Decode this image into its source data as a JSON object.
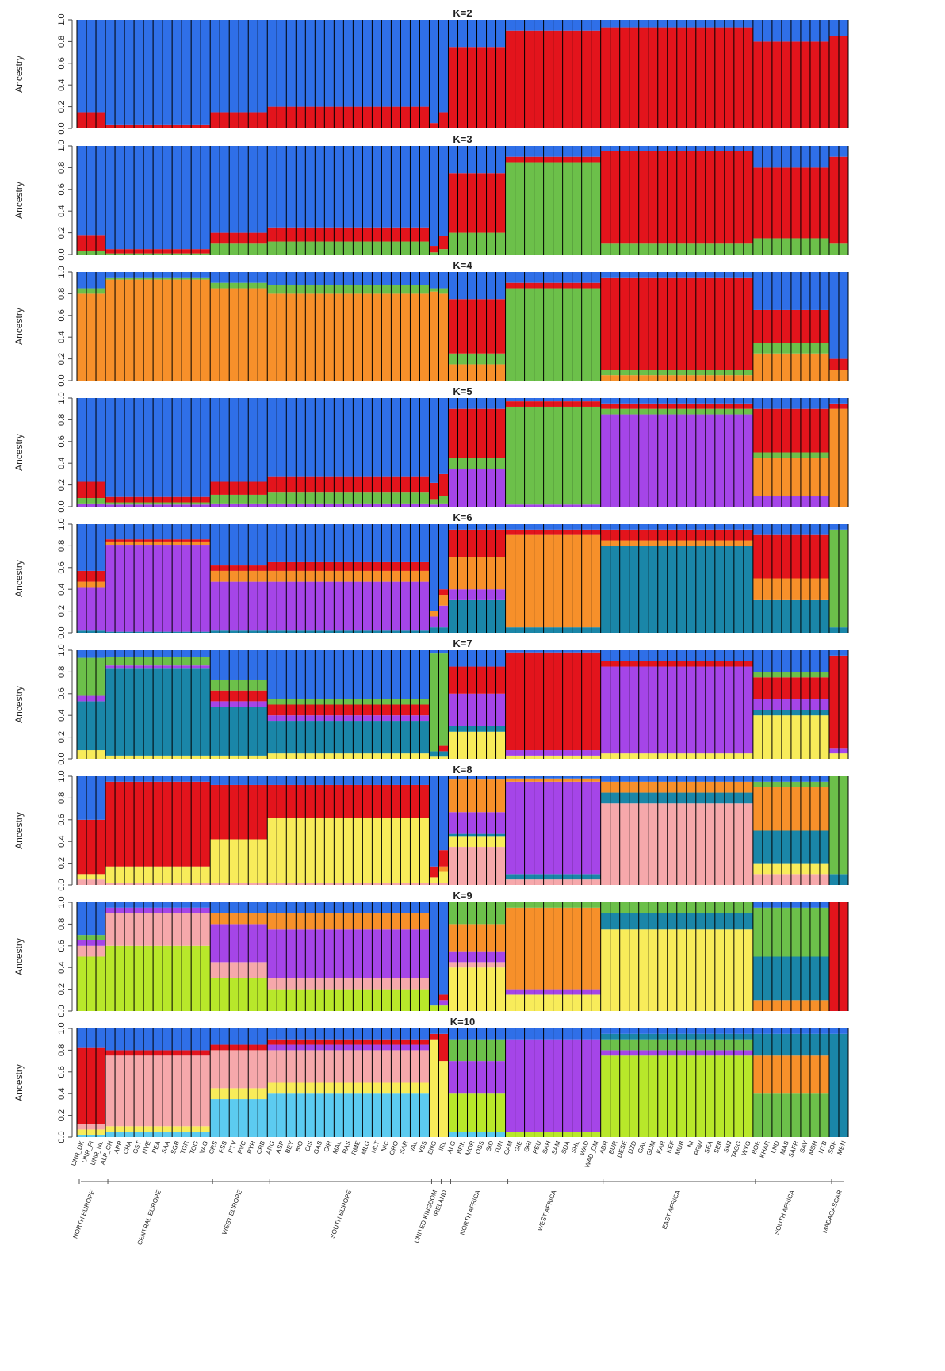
{
  "regions": [
    {
      "name": "NORTH EUROPE",
      "populations": [
        "UNR_DK",
        "UNR_FI",
        "UNR_NL"
      ]
    },
    {
      "name": "CENTRAL EUROPE",
      "populations": [
        "ALP_CH",
        "APP",
        "CHA",
        "GST",
        "NVE",
        "PEA",
        "SAA",
        "SGB",
        "TGR",
        "TOG",
        "VAG"
      ]
    },
    {
      "name": "WEST EUROPE",
      "populations": [
        "CRS",
        "FSS",
        "PTV",
        "PVC",
        "PYR",
        "CRB"
      ]
    },
    {
      "name": "SOUTH EUROPE",
      "populations": [
        "ARG",
        "ASP",
        "BEY",
        "BIO",
        "CIS",
        "GAS",
        "GIR",
        "MAL",
        "RAS",
        "RME",
        "MLG",
        "MLT",
        "NIC",
        "ORO",
        "SAR",
        "VAL",
        "VSS"
      ]
    },
    {
      "name": "UNITED KINGDOM",
      "populations": [
        "ENG"
      ]
    },
    {
      "name": "IRELAND",
      "populations": [
        "IRL"
      ]
    },
    {
      "name": "NORTH AFRICA",
      "populations": [
        "ALG",
        "BRK",
        "MOR",
        "OSS",
        "SID",
        "TUN"
      ]
    },
    {
      "name": "WEST AFRICA",
      "populations": [
        "CAM",
        "GIE",
        "GRI",
        "PEU",
        "SAH",
        "SAM",
        "SDA",
        "SHL",
        "WAD",
        "WAD_CM"
      ]
    },
    {
      "name": "EAST AFRICA",
      "populations": [
        "ABR",
        "BUR",
        "DESE",
        "DZD",
        "GAL",
        "GUM",
        "KAR",
        "KEF",
        "MUB",
        "NI",
        "PRW",
        "SEA",
        "SEB",
        "SNJ",
        "TAGG",
        "WYG"
      ]
    },
    {
      "name": "SOUTH AFRICA",
      "populations": [
        "BOE",
        "KHAR",
        "LND",
        "MAS",
        "SAFR",
        "SAV",
        "MSH",
        "NTB"
      ]
    },
    {
      "name": "MADAGASCAR",
      "populations": [
        "SOF",
        "MEN"
      ]
    }
  ],
  "chart_data": [
    {
      "type": "stacked_bar",
      "title": "K=2",
      "ylabel": "Ancestry",
      "ylim": [
        0,
        1
      ],
      "yticks": [
        {
          "value": 0,
          "label": "0.0"
        },
        0.2,
        0.4,
        0.6,
        0.8,
        {
          "value": 1,
          "label": "1.0"
        }
      ],
      "series": [
        {
          "color": "#e3141c",
          "values": [
            0.15,
            0.03,
            0.15,
            0.2,
            0.05,
            0.15,
            0.75,
            0.9,
            0.93,
            0.8,
            0.85
          ]
        },
        {
          "color": "#2f6fe8",
          "values": [
            0.85,
            0.97,
            0.85,
            0.8,
            0.95,
            0.85,
            0.25,
            0.1,
            0.07,
            0.2,
            0.15
          ]
        }
      ]
    },
    {
      "type": "stacked_bar",
      "title": "K=3",
      "ylabel": "Ancestry",
      "ylim": [
        0,
        1
      ],
      "yticks": [
        {
          "value": 0,
          "label": "0.0"
        },
        0.2,
        0.4,
        0.6,
        0.8,
        {
          "value": 1,
          "label": "1.0"
        }
      ],
      "series": [
        {
          "color": "#6cc04a",
          "values": [
            0.03,
            0.01,
            0.1,
            0.12,
            0.02,
            0.05,
            0.2,
            0.85,
            0.1,
            0.15,
            0.1
          ]
        },
        {
          "color": "#e3141c",
          "values": [
            0.15,
            0.04,
            0.1,
            0.13,
            0.06,
            0.12,
            0.55,
            0.05,
            0.85,
            0.65,
            0.8
          ]
        },
        {
          "color": "#2f6fe8",
          "values": [
            0.82,
            0.95,
            0.8,
            0.75,
            0.92,
            0.83,
            0.25,
            0.1,
            0.05,
            0.2,
            0.1
          ]
        }
      ]
    },
    {
      "type": "stacked_bar",
      "title": "K=4",
      "ylabel": "Ancestry",
      "ylim": [
        0,
        1
      ],
      "yticks": [
        {
          "value": 0,
          "label": "0.0"
        },
        0.2,
        0.4,
        0.6,
        0.8,
        {
          "value": 1,
          "label": "1.0"
        }
      ],
      "series": [
        {
          "color": "#f7902a",
          "values": [
            0.8,
            0.93,
            0.85,
            0.8,
            0.82,
            0.8,
            0.15,
            0,
            0.05,
            0.25,
            0.1
          ]
        },
        {
          "color": "#6cc04a",
          "values": [
            0.05,
            0.02,
            0.05,
            0.08,
            0.03,
            0.05,
            0.1,
            0.85,
            0.05,
            0.1,
            0
          ]
        },
        {
          "color": "#e3141c",
          "values": [
            0,
            0,
            0,
            0,
            0,
            0,
            0.5,
            0.05,
            0.85,
            0.3,
            0.1
          ]
        },
        {
          "color": "#2f6fe8",
          "values": [
            0.15,
            0.05,
            0.1,
            0.12,
            0.15,
            0.15,
            0.25,
            0.1,
            0.05,
            0.35,
            0.8
          ]
        }
      ]
    },
    {
      "type": "stacked_bar",
      "title": "K=5",
      "ylabel": "Ancestry",
      "ylim": [
        0,
        1
      ],
      "yticks": [
        {
          "value": 0,
          "label": "0.0"
        },
        0.2,
        0.4,
        0.6,
        0.8,
        {
          "value": 1,
          "label": "1.0"
        }
      ],
      "series": [
        {
          "color": "#a545e8",
          "values": [
            0.03,
            0.02,
            0.03,
            0.03,
            0.02,
            0.03,
            0.35,
            0.02,
            0.85,
            0.1,
            0
          ]
        },
        {
          "color": "#f7902a",
          "values": [
            0,
            0,
            0,
            0,
            0,
            0,
            0,
            0,
            0,
            0.35,
            0.9
          ]
        },
        {
          "color": "#6cc04a",
          "values": [
            0.05,
            0.02,
            0.08,
            0.1,
            0.05,
            0.07,
            0.1,
            0.9,
            0.05,
            0.05,
            0
          ]
        },
        {
          "color": "#e3141c",
          "values": [
            0.15,
            0.05,
            0.12,
            0.15,
            0.15,
            0.2,
            0.45,
            0.05,
            0.05,
            0.4,
            0.05
          ]
        },
        {
          "color": "#2f6fe8",
          "values": [
            0.77,
            0.91,
            0.77,
            0.72,
            0.78,
            0.7,
            0.1,
            0.03,
            0.05,
            0.1,
            0.05
          ]
        }
      ]
    },
    {
      "type": "stacked_bar",
      "title": "K=6",
      "ylabel": "Ancestry",
      "ylim": [
        0,
        1
      ],
      "yticks": [
        {
          "value": 0,
          "label": "0.0"
        },
        0.2,
        0.4,
        0.6,
        0.8,
        {
          "value": 1,
          "label": "1.0"
        }
      ],
      "series": [
        {
          "color": "#1a86a8",
          "values": [
            0.02,
            0.01,
            0.02,
            0.02,
            0.05,
            0.05,
            0.3,
            0.05,
            0.8,
            0.3,
            0.05
          ]
        },
        {
          "color": "#a545e8",
          "values": [
            0.4,
            0.8,
            0.45,
            0.45,
            0.1,
            0.2,
            0.1,
            0,
            0,
            0,
            0
          ]
        },
        {
          "color": "#f7902a",
          "values": [
            0.05,
            0.03,
            0.1,
            0.1,
            0.05,
            0.1,
            0.3,
            0.85,
            0.05,
            0.2,
            0
          ]
        },
        {
          "color": "#e3141c",
          "values": [
            0.1,
            0.02,
            0.05,
            0.08,
            0,
            0.05,
            0.25,
            0.05,
            0.1,
            0.4,
            0
          ]
        },
        {
          "color": "#6cc04a",
          "values": [
            0,
            0,
            0,
            0,
            0,
            0,
            0,
            0,
            0,
            0,
            0.9
          ]
        },
        {
          "color": "#2f6fe8",
          "values": [
            0.43,
            0.14,
            0.38,
            0.35,
            0.8,
            0.6,
            0.05,
            0.05,
            0.05,
            0.1,
            0.05
          ]
        }
      ]
    },
    {
      "type": "stacked_bar",
      "title": "K=7",
      "ylabel": "Ancestry",
      "ylim": [
        0,
        1
      ],
      "yticks": [
        {
          "value": 0,
          "label": "0.0"
        },
        0.2,
        0.4,
        0.6,
        0.8,
        {
          "value": 1,
          "label": "1.0"
        }
      ],
      "series": [
        {
          "color": "#f8ec5a",
          "values": [
            0.08,
            0.03,
            0.03,
            0.05,
            0.02,
            0.02,
            0.25,
            0.03,
            0.05,
            0.4,
            0.05
          ]
        },
        {
          "color": "#1a86a8",
          "values": [
            0.45,
            0.8,
            0.45,
            0.3,
            0.05,
            0.05,
            0.05,
            0,
            0,
            0.05,
            0
          ]
        },
        {
          "color": "#a545e8",
          "values": [
            0.05,
            0.03,
            0.05,
            0.05,
            0,
            0,
            0.3,
            0.05,
            0.8,
            0.1,
            0.05
          ]
        },
        {
          "color": "#e3141c",
          "values": [
            0,
            0,
            0.1,
            0.1,
            0,
            0.05,
            0.25,
            0.9,
            0.05,
            0.2,
            0.85
          ]
        },
        {
          "color": "#6cc04a",
          "values": [
            0.35,
            0.08,
            0.1,
            0.05,
            0.9,
            0.85,
            0,
            0,
            0,
            0.05,
            0
          ]
        },
        {
          "color": "#2f6fe8",
          "values": [
            0.07,
            0.06,
            0.27,
            0.45,
            0.03,
            0.03,
            0.15,
            0.02,
            0.1,
            0.2,
            0.05
          ]
        }
      ]
    },
    {
      "type": "stacked_bar",
      "title": "K=8",
      "ylabel": "Ancestry",
      "ylim": [
        0,
        1
      ],
      "yticks": [
        {
          "value": 0,
          "label": "0.0"
        },
        0.2,
        0.4,
        0.6,
        0.8,
        {
          "value": 1,
          "label": "1.0"
        }
      ],
      "series": [
        {
          "color": "#f6a8ab",
          "values": [
            0.05,
            0.02,
            0.02,
            0.02,
            0.02,
            0.02,
            0.35,
            0.05,
            0.75,
            0.1,
            0
          ]
        },
        {
          "color": "#f8ec5a",
          "values": [
            0.05,
            0.15,
            0.4,
            0.6,
            0.05,
            0.1,
            0.1,
            0,
            0,
            0.1,
            0
          ]
        },
        {
          "color": "#1a86a8",
          "values": [
            0,
            0,
            0,
            0,
            0,
            0,
            0.02,
            0.05,
            0.1,
            0.3,
            0.1
          ]
        },
        {
          "color": "#a545e8",
          "values": [
            0,
            0,
            0,
            0,
            0,
            0,
            0.2,
            0.85,
            0,
            0,
            0
          ]
        },
        {
          "color": "#f7902a",
          "values": [
            0,
            0,
            0,
            0,
            0,
            0.05,
            0.3,
            0.03,
            0.1,
            0.4,
            0
          ]
        },
        {
          "color": "#e3141c",
          "values": [
            0.5,
            0.78,
            0.5,
            0.3,
            0.1,
            0.15,
            0,
            0,
            0,
            0,
            0
          ]
        },
        {
          "color": "#6cc04a",
          "values": [
            0,
            0,
            0,
            0,
            0,
            0,
            0,
            0,
            0,
            0.05,
            0.9
          ]
        },
        {
          "color": "#2f6fe8",
          "values": [
            0.4,
            0.05,
            0.08,
            0.08,
            0.83,
            0.68,
            0.03,
            0.02,
            0.05,
            0.05,
            0
          ]
        }
      ]
    },
    {
      "type": "stacked_bar",
      "title": "K=9",
      "ylabel": "Ancestry",
      "ylim": [
        0,
        1
      ],
      "yticks": [
        {
          "value": 0,
          "label": "0.0"
        },
        0.2,
        0.4,
        0.6,
        0.8,
        {
          "value": 1,
          "label": "1.0"
        }
      ],
      "series": [
        {
          "color": "#b8e82a",
          "values": [
            0.5,
            0.6,
            0.3,
            0.2,
            0.05,
            0.05,
            0,
            0,
            0,
            0,
            0
          ]
        },
        {
          "color": "#f8ec5a",
          "values": [
            0,
            0,
            0,
            0,
            0,
            0,
            0.4,
            0.15,
            0.75,
            0,
            0
          ]
        },
        {
          "color": "#f6a8ab",
          "values": [
            0.1,
            0.3,
            0.15,
            0.1,
            0,
            0,
            0.05,
            0,
            0,
            0,
            0
          ]
        },
        {
          "color": "#a545e8",
          "values": [
            0.05,
            0.05,
            0.35,
            0.45,
            0,
            0.05,
            0.1,
            0.05,
            0,
            0,
            0
          ]
        },
        {
          "color": "#f7902a",
          "values": [
            0,
            0,
            0.1,
            0.15,
            0,
            0,
            0.25,
            0.75,
            0,
            0.1,
            0
          ]
        },
        {
          "color": "#1a86a8",
          "values": [
            0,
            0,
            0,
            0,
            0,
            0,
            0,
            0,
            0.15,
            0.4,
            0
          ]
        },
        {
          "color": "#6cc04a",
          "values": [
            0.05,
            0,
            0,
            0,
            0,
            0,
            0.2,
            0.05,
            0.1,
            0.45,
            0
          ]
        },
        {
          "color": "#e3141c",
          "values": [
            0,
            0,
            0,
            0,
            0,
            0.05,
            0,
            0,
            0,
            0,
            1
          ]
        },
        {
          "color": "#2f6fe8",
          "values": [
            0.3,
            0.05,
            0.1,
            0.1,
            0.95,
            0.85,
            0,
            0,
            0,
            0.05,
            0
          ]
        }
      ]
    },
    {
      "type": "stacked_bar",
      "title": "K=10",
      "ylabel": "Ancestry",
      "ylim": [
        0,
        1
      ],
      "yticks": [
        {
          "value": 0,
          "label": "0.0"
        },
        0.2,
        0.4,
        0.6,
        0.8,
        {
          "value": 1,
          "label": "1.0"
        }
      ],
      "series": [
        {
          "color": "#5ccbf0",
          "values": [
            0.02,
            0.05,
            0.35,
            0.4,
            0,
            0,
            0.05,
            0,
            0,
            0,
            0
          ]
        },
        {
          "color": "#b8e82a",
          "values": [
            0,
            0,
            0,
            0,
            0,
            0,
            0.35,
            0.05,
            0.75,
            0,
            0
          ]
        },
        {
          "color": "#f8ec5a",
          "values": [
            0.05,
            0.05,
            0.1,
            0.1,
            0.9,
            0.7,
            0,
            0,
            0,
            0,
            0
          ]
        },
        {
          "color": "#f6a8ab",
          "values": [
            0.05,
            0.65,
            0.35,
            0.3,
            0,
            0,
            0,
            0,
            0,
            0,
            0
          ]
        },
        {
          "color": "#a545e8",
          "values": [
            0,
            0,
            0,
            0.05,
            0,
            0,
            0.3,
            0.85,
            0.05,
            0,
            0
          ]
        },
        {
          "color": "#e3141c",
          "values": [
            0.7,
            0.05,
            0.05,
            0.05,
            0.05,
            0.25,
            0,
            0,
            0,
            0,
            0
          ]
        },
        {
          "color": "#6cc04a",
          "values": [
            0,
            0,
            0,
            0,
            0,
            0,
            0.2,
            0,
            0.1,
            0.4,
            0
          ]
        },
        {
          "color": "#f7902a",
          "values": [
            0,
            0,
            0,
            0,
            0,
            0,
            0,
            0,
            0,
            0.35,
            0
          ]
        },
        {
          "color": "#1a86a8",
          "values": [
            0,
            0,
            0,
            0,
            0,
            0,
            0,
            0,
            0.05,
            0.2,
            0.95
          ]
        },
        {
          "color": "#2f6fe8",
          "values": [
            0.18,
            0.2,
            0.15,
            0.1,
            0.05,
            0.05,
            0.1,
            0.1,
            0.05,
            0.05,
            0.05
          ]
        }
      ]
    }
  ]
}
